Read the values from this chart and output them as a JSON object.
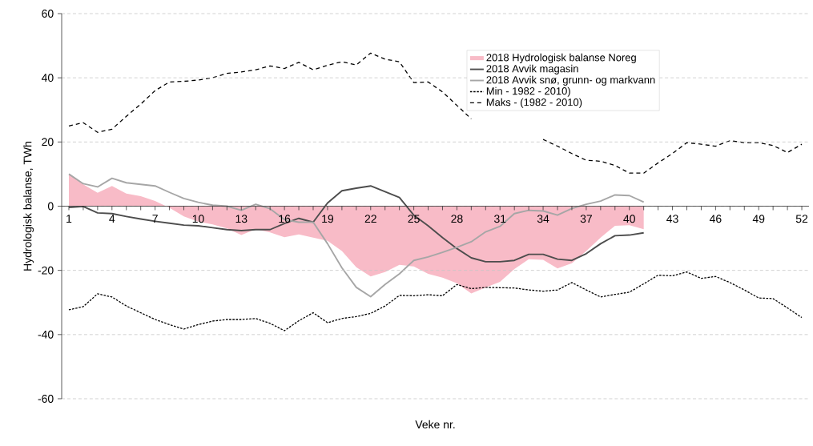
{
  "chart_data": {
    "type": "line",
    "xlabel": "Veke nr.",
    "ylabel": "Hydrologisk balanse, TWh",
    "x": [
      1,
      2,
      3,
      4,
      5,
      6,
      7,
      8,
      9,
      10,
      11,
      12,
      13,
      14,
      15,
      16,
      17,
      18,
      19,
      20,
      21,
      22,
      23,
      24,
      25,
      26,
      27,
      28,
      29,
      30,
      31,
      32,
      33,
      34,
      35,
      36,
      37,
      38,
      39,
      40,
      41,
      42,
      43,
      44,
      45,
      46,
      47,
      48,
      49,
      50,
      51,
      52
    ],
    "xlim": [
      0.5,
      52.5
    ],
    "ylim": [
      -60,
      60
    ],
    "yticks": [
      -60,
      -40,
      -20,
      0,
      20,
      40,
      60
    ],
    "xticks": [
      1,
      {
        "value": 2,
        "label": null
      },
      {
        "value": 3,
        "label": null
      },
      4,
      {
        "value": 5,
        "label": null
      },
      {
        "value": 6,
        "label": null
      },
      7,
      {
        "value": 8,
        "label": null
      },
      {
        "value": 9,
        "label": null
      },
      10,
      {
        "value": 11,
        "label": null
      },
      {
        "value": 12,
        "label": null
      },
      13,
      {
        "value": 14,
        "label": null
      },
      {
        "value": 15,
        "label": null
      },
      16,
      {
        "value": 17,
        "label": null
      },
      {
        "value": 18,
        "label": null
      },
      19,
      {
        "value": 20,
        "label": null
      },
      {
        "value": 21,
        "label": null
      },
      22,
      {
        "value": 23,
        "label": null
      },
      {
        "value": 24,
        "label": null
      },
      25,
      {
        "value": 26,
        "label": null
      },
      {
        "value": 27,
        "label": null
      },
      28,
      {
        "value": 29,
        "label": null
      },
      {
        "value": 30,
        "label": null
      },
      31,
      {
        "value": 32,
        "label": null
      },
      {
        "value": 33,
        "label": null
      },
      34,
      {
        "value": 35,
        "label": null
      },
      {
        "value": 36,
        "label": null
      },
      37,
      {
        "value": 38,
        "label": null
      },
      {
        "value": 39,
        "label": null
      },
      40,
      {
        "value": 41,
        "label": null
      },
      {
        "value": 42,
        "label": null
      },
      43,
      {
        "value": 44,
        "label": null
      },
      {
        "value": 45,
        "label": null
      },
      46,
      {
        "value": 47,
        "label": null
      },
      {
        "value": 48,
        "label": null
      },
      49,
      {
        "value": 50,
        "label": null
      },
      {
        "value": 51,
        "label": null
      },
      52
    ],
    "grid": "y",
    "legend": "top right",
    "series": [
      {
        "name": "2018 Hydrologisk balanse Noreg",
        "type": "area",
        "color": "#f8bbc7",
        "x": [
          1,
          2,
          3,
          4,
          5,
          6,
          7,
          8,
          9,
          10,
          11,
          12,
          13,
          14,
          15,
          16,
          17,
          18,
          19,
          20,
          21,
          22,
          23,
          24,
          25,
          26,
          27,
          28,
          29,
          30,
          31,
          32,
          33,
          34,
          35,
          36,
          37,
          38,
          39,
          40,
          41
        ],
        "values": [
          10,
          6.8,
          4.2,
          6.3,
          3.9,
          3.1,
          1.6,
          -0.5,
          -3.2,
          -4.8,
          -5.7,
          -6.9,
          -9,
          -7.2,
          -8.2,
          -9.7,
          -8.8,
          -9.8,
          -10.8,
          -14,
          -19,
          -21.9,
          -20.5,
          -18.3,
          -18.8,
          -21.1,
          -22.3,
          -24,
          -27.2,
          -25.3,
          -23.6,
          -19.6,
          -16.5,
          -16.7,
          -19.4,
          -17.8,
          -14,
          -9.8,
          -6.1,
          -5.9,
          -7.2
        ]
      },
      {
        "name": "2018 Avvik magasin",
        "color": "#4d4d4d",
        "line_style": "solid",
        "x": [
          1,
          2,
          3,
          4,
          5,
          6,
          7,
          8,
          9,
          10,
          11,
          12,
          13,
          14,
          15,
          16,
          17,
          18,
          19,
          20,
          21,
          22,
          23,
          24,
          25,
          26,
          27,
          28,
          29,
          30,
          31,
          32,
          33,
          34,
          35,
          36,
          37,
          38,
          39,
          40,
          41
        ],
        "values": [
          -0.4,
          -0.1,
          -2.1,
          -2.3,
          -3.2,
          -4,
          -4.7,
          -5.3,
          -5.9,
          -6.1,
          -6.7,
          -7.3,
          -7.6,
          -7.3,
          -7.3,
          -5.4,
          -3.8,
          -5,
          1,
          4.8,
          5.6,
          6.3,
          4.5,
          2.7,
          -2.8,
          -6.1,
          -9.8,
          -13.2,
          -16.1,
          -17.3,
          -17.3,
          -16.9,
          -15,
          -15,
          -16.5,
          -16.9,
          -14.8,
          -11.7,
          -9.2,
          -9,
          -8.3
        ]
      },
      {
        "name": "2018 Avvik snø, grunn- og markvann",
        "color": "#a6a6a6",
        "line_style": "solid",
        "x": [
          1,
          2,
          3,
          4,
          5,
          6,
          7,
          8,
          9,
          10,
          11,
          12,
          13,
          14,
          15,
          16,
          17,
          18,
          19,
          20,
          21,
          22,
          23,
          24,
          25,
          26,
          27,
          28,
          29,
          30,
          31,
          32,
          33,
          34,
          35,
          36,
          37,
          38,
          39,
          40,
          41
        ],
        "values": [
          10,
          7,
          6,
          8.7,
          7.3,
          6.8,
          6.3,
          4.3,
          2.4,
          1.2,
          0.3,
          0,
          -1.3,
          0.6,
          -0.8,
          -4.2,
          -5,
          -5,
          -11.7,
          -19.2,
          -25.3,
          -28.2,
          -24.4,
          -21.1,
          -16.9,
          -15.8,
          -14.4,
          -12.8,
          -11.1,
          -8,
          -6.3,
          -2.3,
          -1.3,
          -1.5,
          -2.8,
          -0.7,
          0.6,
          1.6,
          3.5,
          3.3,
          1.3
        ]
      },
      {
        "name": "Min - 1982 - 2010)",
        "color": "#000000",
        "line_style": "dotted",
        "values": [
          -32.3,
          -31.3,
          -27.3,
          -28.3,
          -31.1,
          -33.2,
          -35.3,
          -36.9,
          -38.3,
          -36.9,
          -35.8,
          -35.3,
          -35.3,
          -35,
          -36.5,
          -38.8,
          -35.7,
          -33.2,
          -36.3,
          -35,
          -34.4,
          -33.4,
          -31.1,
          -27.8,
          -27.9,
          -27.6,
          -27.9,
          -24.4,
          -25.7,
          -25.3,
          -25.4,
          -25.5,
          -26.1,
          -26.5,
          -26.1,
          -23.8,
          -26.1,
          -28.3,
          -27.5,
          -26.8,
          -24.2,
          -21.5,
          -21.7,
          -20.5,
          -22.5,
          -21.9,
          -23.8,
          -26.1,
          -28.6,
          -28.8,
          -31.7,
          -34.7
        ]
      },
      {
        "name": "Maks - (1982 - 2010)",
        "color": "#000000",
        "line_style": "dashed",
        "values": [
          25,
          26,
          23,
          24,
          28,
          31.8,
          36,
          38.7,
          38.9,
          39.3,
          40,
          41.4,
          41.8,
          42.5,
          43.7,
          42.9,
          44.8,
          42.5,
          43.9,
          45,
          44,
          47.7,
          45.8,
          45,
          38.5,
          38.7,
          35.6,
          31.4,
          27.2,
          null,
          null,
          null,
          null,
          20.8,
          18.7,
          16.4,
          14.3,
          14,
          12.7,
          10.3,
          10.3,
          13.5,
          16.4,
          19.8,
          19.3,
          18.7,
          20.4,
          19.8,
          19.8,
          18.9,
          16.7,
          19.3
        ]
      }
    ]
  }
}
